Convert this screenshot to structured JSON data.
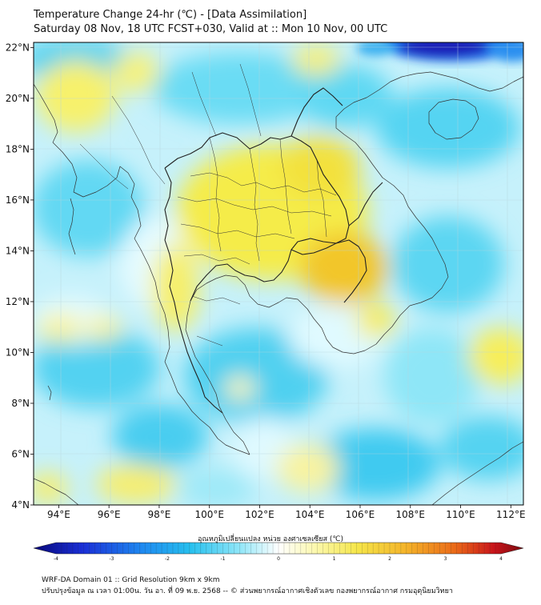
{
  "header": {
    "title_line1": "Temperature Change 24-hr (℃) - [Data Assimilation]",
    "title_line2": "Saturday 08 Nov, 18 UTC FCST+030, Valid at :: Mon 10 Nov, 00 UTC"
  },
  "map": {
    "lon_range": [
      93,
      112.5
    ],
    "lat_range": [
      4,
      22.2
    ],
    "lon_ticks": [
      "94°E",
      "96°E",
      "98°E",
      "100°E",
      "102°E",
      "104°E",
      "106°E",
      "108°E",
      "110°E",
      "112°E"
    ],
    "lat_ticks": [
      "22°N",
      "20°N",
      "18°N",
      "16°N",
      "14°N",
      "12°N",
      "10°N",
      "8°N",
      "6°N",
      "4°N"
    ],
    "grid": true,
    "field_colors": {
      "cold_strong": "#0a0a8c",
      "cold": "#1e90ff",
      "cool": "#33ccee",
      "light": "#9fe8f8",
      "neutral": "#eafcff",
      "warm": "#f5ec4a",
      "warmer": "#f0c02a"
    }
  },
  "colorbar": {
    "title": "อุณหภูมิเปลี่ยนแปลง หน่วย องศาเซลเซียส (℃)",
    "ticks": [
      "-4",
      "-3",
      "-2",
      "-1",
      "0",
      "1",
      "2",
      "3",
      "4"
    ],
    "range": [
      -4,
      4
    ]
  },
  "footer": {
    "line1": "WRF-DA Domain 01 :: Grid Resolution 9km x 9km",
    "line2": "ปรับปรุงข้อมูล ณ เวลา 01:00น. วัน อา. ที่ 09 พ.ย. 2568 -- © ส่วนพยากรณ์อากาศเชิงตัวเลข กองพยากรณ์อากาศ กรมอุตุนิยมวิทยา"
  }
}
